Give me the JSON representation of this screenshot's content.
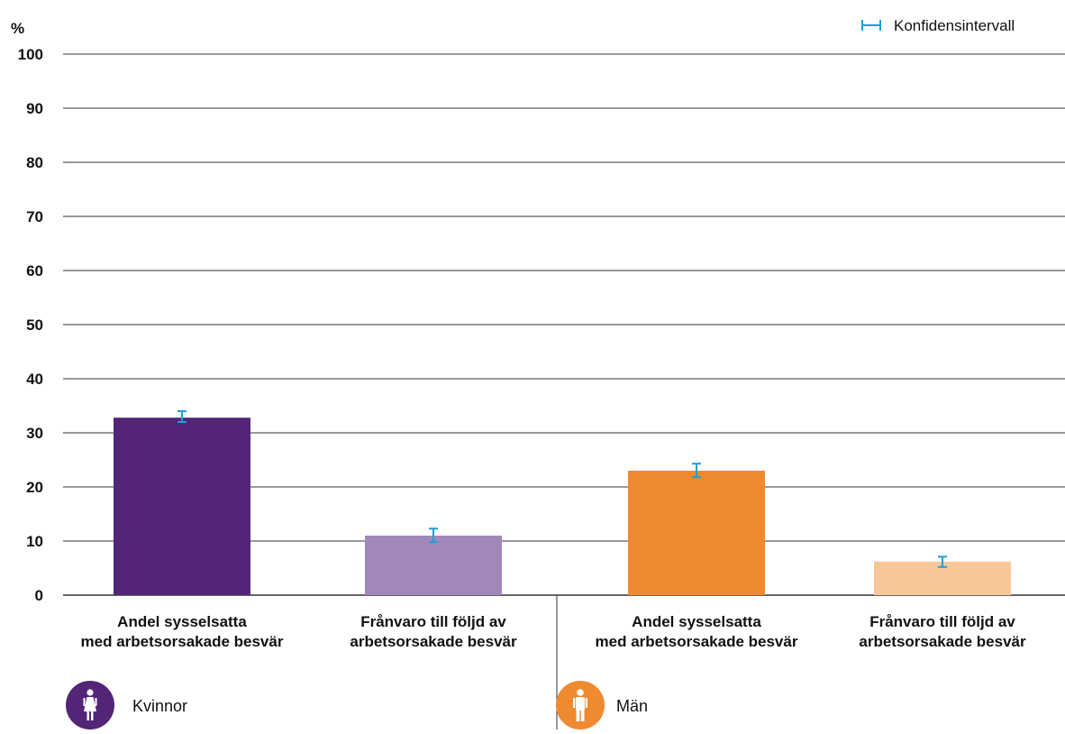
{
  "chart_data": {
    "type": "bar",
    "unit_label": "%",
    "ylim": [
      0,
      100
    ],
    "yticks": [
      0,
      10,
      20,
      30,
      40,
      50,
      60,
      70,
      80,
      90,
      100
    ],
    "grid": true,
    "legend": {
      "label": "Konfidensintervall",
      "placement": "top-right"
    },
    "categories": [
      [
        "Andel sysselsatta",
        "med arbetsorsakade besvär"
      ],
      [
        "Frånvaro till följd av",
        "arbetsorsakade besvär"
      ],
      [
        "Andel sysselsatta",
        "med arbetsorsakade besvär"
      ],
      [
        "Frånvaro till följd av",
        "arbetsorsakade besvär"
      ]
    ],
    "groups": [
      {
        "name": "Kvinnor",
        "icon": "female-icon",
        "color": "#532577",
        "bars": [
          0,
          1
        ]
      },
      {
        "name": "Män",
        "icon": "male-icon",
        "color": "#F08A30",
        "bars": [
          2,
          3
        ]
      }
    ],
    "bars": [
      {
        "value": 32.8,
        "ci": [
          32.0,
          34.0
        ],
        "color": "#532577"
      },
      {
        "value": 11.0,
        "ci": [
          9.8,
          12.3
        ],
        "color": "#A089BA"
      },
      {
        "value": 23.0,
        "ci": [
          21.8,
          24.3
        ],
        "color": "#F08A30"
      },
      {
        "value": 6.2,
        "ci": [
          5.2,
          7.1
        ],
        "color": "#F7C79A"
      }
    ],
    "colors": {
      "ci": "#1E9FD8",
      "grid": "#333333"
    }
  }
}
